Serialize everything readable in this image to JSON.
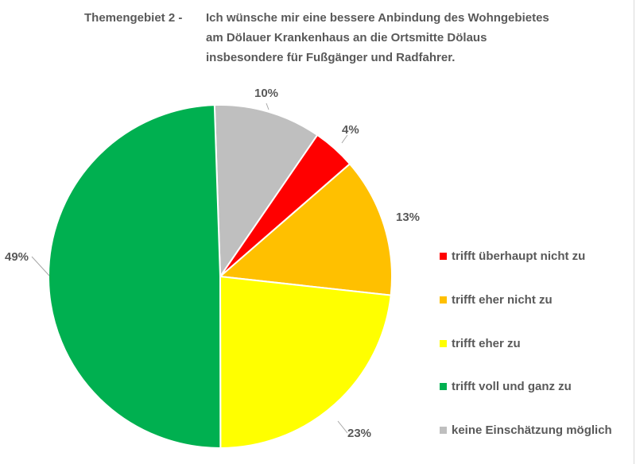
{
  "chart_data": {
    "type": "pie",
    "title_prefix": "Themengebiet 2   -",
    "title_lines": [
      "Ich wünsche mir eine bessere Anbindung des Wohngebietes",
      "am Dölauer Krankenhaus an die Ortsmitte Dölaus",
      "insbesondere für Fußgänger und Radfahrer."
    ],
    "slice_order_clockwise_from_top": [
      "keine Einschätzung möglich",
      "trifft überhaupt nicht zu",
      "trifft eher nicht zu",
      "trifft eher zu",
      "trifft voll und ganz zu"
    ],
    "slices": [
      {
        "label": "keine Einschätzung möglich",
        "value": 10,
        "display": "10%",
        "color": "#BFBFBF"
      },
      {
        "label": "trifft überhaupt nicht zu",
        "value": 4,
        "display": "4%",
        "color": "#FF0000"
      },
      {
        "label": "trifft eher nicht zu",
        "value": 13,
        "display": "13%",
        "color": "#FFC000"
      },
      {
        "label": "trifft eher zu",
        "value": 23,
        "display": "23%",
        "color": "#FFFF00"
      },
      {
        "label": "trifft voll und ganz zu",
        "value": 49,
        "display": "49%",
        "color": "#00B050"
      }
    ],
    "legend": [
      {
        "label": "trifft überhaupt nicht zu",
        "color": "#FF0000"
      },
      {
        "label": "trifft eher nicht zu",
        "color": "#FFC000"
      },
      {
        "label": "trifft eher zu",
        "color": "#FFFF00"
      },
      {
        "label": "trifft voll und ganz zu",
        "color": "#00B050"
      },
      {
        "label": "keine Einschätzung möglich",
        "color": "#BFBFBF"
      }
    ],
    "legend_position": "right"
  }
}
